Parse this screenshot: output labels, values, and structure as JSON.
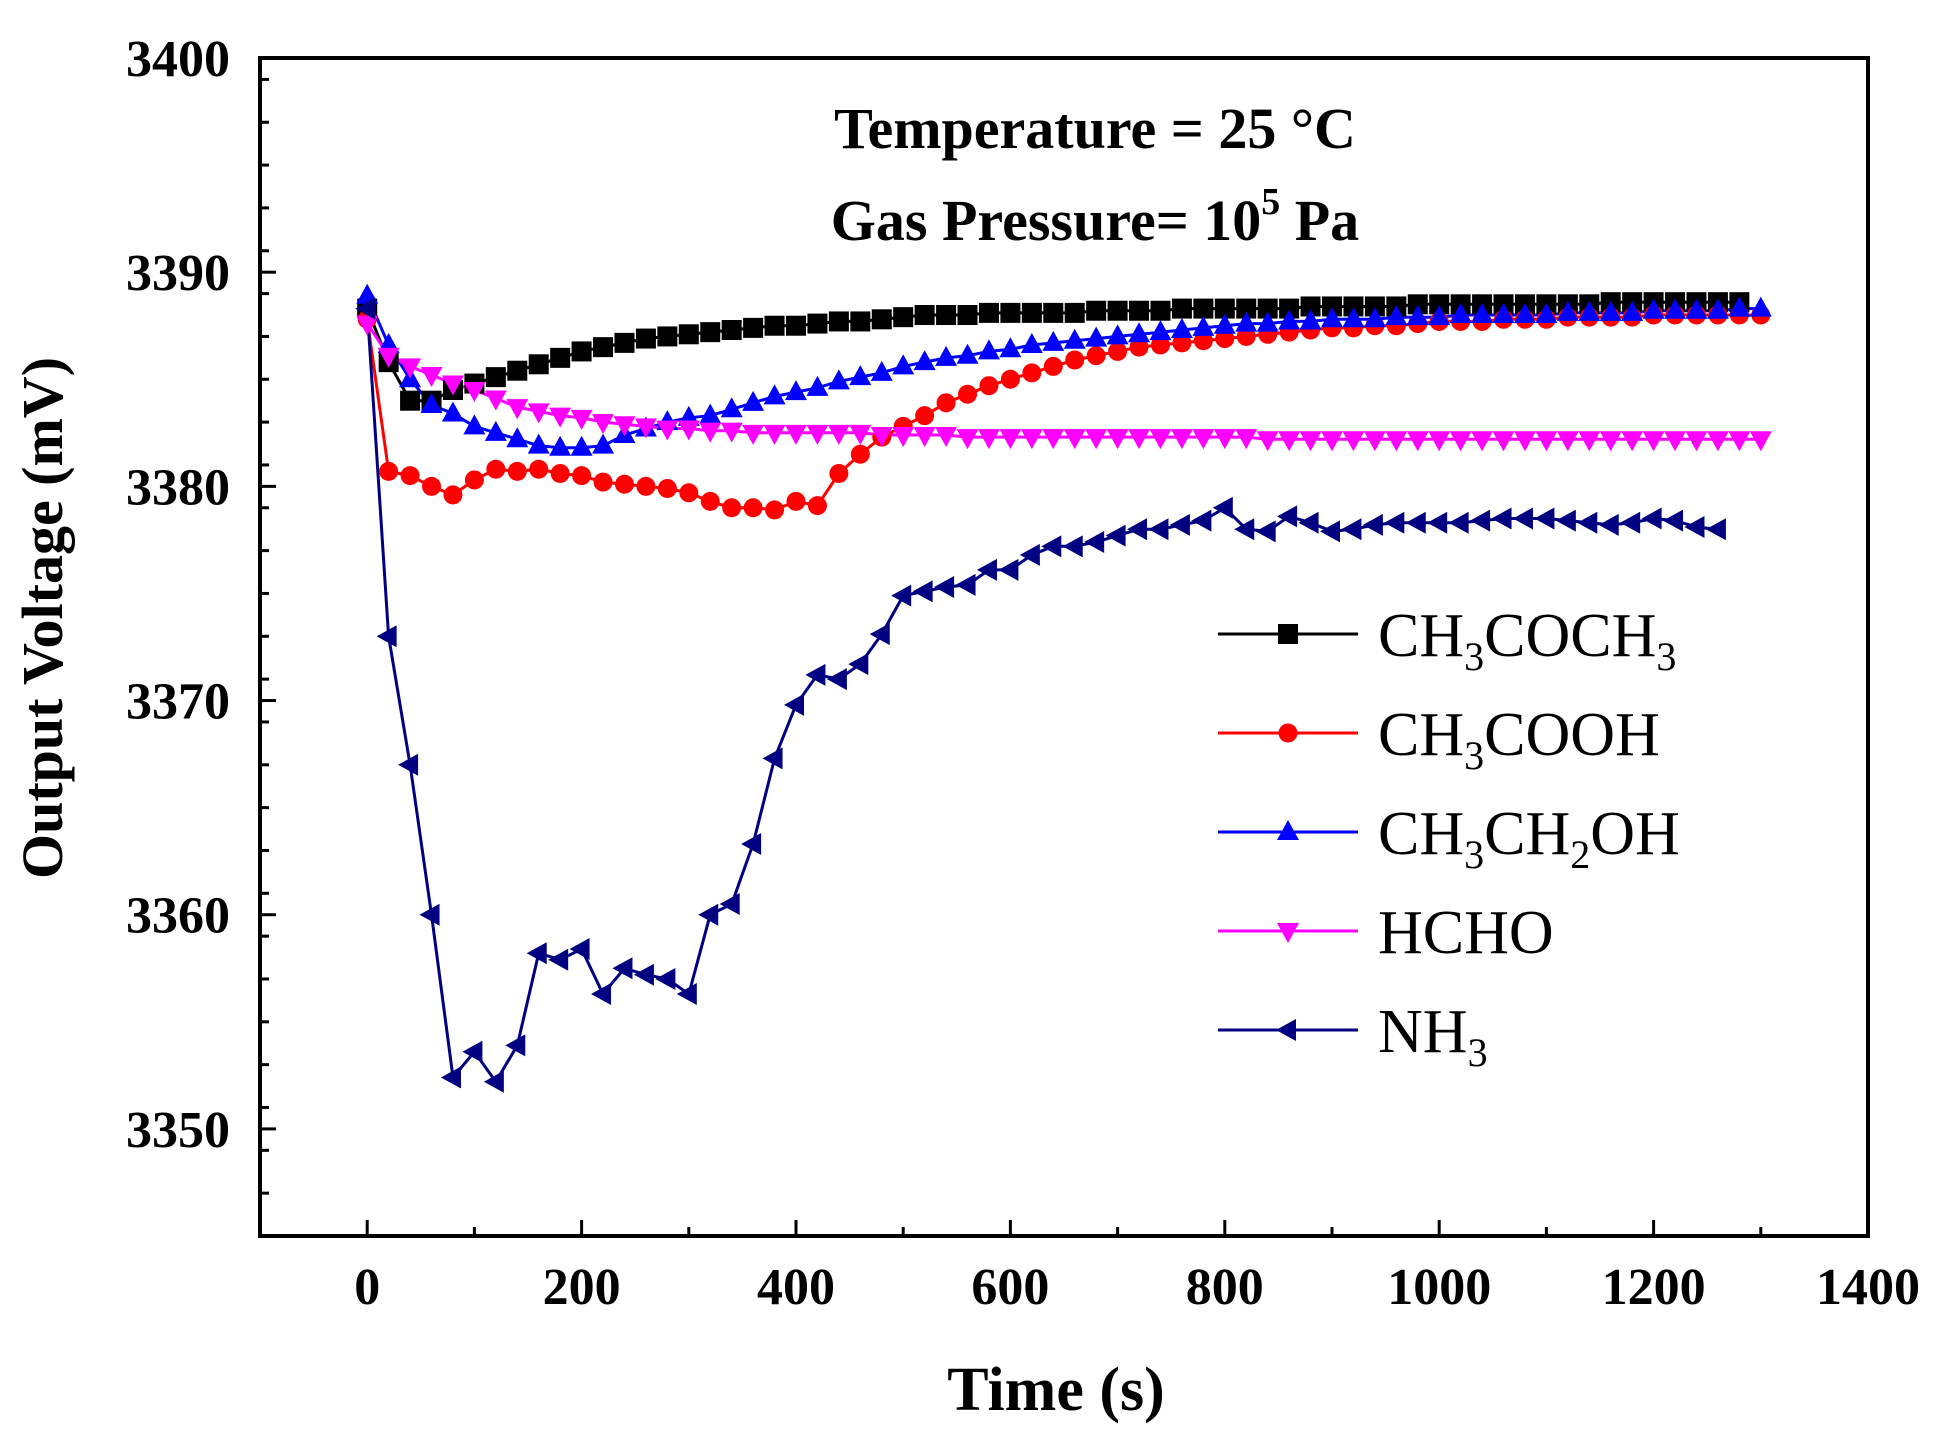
{
  "chart_data": {
    "type": "line",
    "xlabel": "Time (s)",
    "ylabel": "Output Voltage (mV)",
    "xlim": [
      -100,
      1400
    ],
    "ylim": [
      3345,
      3400
    ],
    "x_ticks": [
      0,
      200,
      400,
      600,
      800,
      1000,
      1200,
      1400
    ],
    "y_ticks": [
      3350,
      3360,
      3370,
      3380,
      3390,
      3400
    ],
    "x_tick_labels": [
      "0",
      "200",
      "400",
      "600",
      "800",
      "1000",
      "1200",
      "1400"
    ],
    "y_tick_labels": [
      "3350",
      "3360",
      "3370",
      "3380",
      "3390",
      "3400"
    ],
    "annotations": {
      "temperature": "Temperature = 25 °C",
      "pressure_prefix": "Gas Pressure= 10",
      "pressure_exp": "5",
      "pressure_suffix": " Pa"
    },
    "legend_position": "center-right",
    "series": [
      {
        "name": "CH3COCH3",
        "legend_parts": [
          [
            "CH",
            false
          ],
          [
            "3",
            true
          ],
          [
            "COCH",
            false
          ],
          [
            "3",
            true
          ]
        ],
        "color": "#000000",
        "marker": "square",
        "x": [
          0,
          20,
          40,
          60,
          80,
          100,
          120,
          140,
          160,
          180,
          200,
          220,
          240,
          260,
          280,
          300,
          320,
          340,
          360,
          380,
          400,
          420,
          440,
          460,
          480,
          500,
          520,
          540,
          560,
          580,
          600,
          620,
          640,
          660,
          680,
          700,
          720,
          740,
          760,
          780,
          800,
          820,
          840,
          860,
          880,
          900,
          920,
          940,
          960,
          980,
          1000,
          1020,
          1040,
          1060,
          1080,
          1100,
          1120,
          1140,
          1160,
          1180,
          1200,
          1220,
          1240,
          1260,
          1280
        ],
        "y": [
          3388.3,
          3385.8,
          3384.0,
          3384.0,
          3384.5,
          3384.8,
          3385.1,
          3385.4,
          3385.7,
          3386.0,
          3386.3,
          3386.5,
          3386.7,
          3386.9,
          3387.0,
          3387.1,
          3387.2,
          3387.3,
          3387.4,
          3387.5,
          3387.5,
          3387.6,
          3387.7,
          3387.7,
          3387.8,
          3387.9,
          3388.0,
          3388.0,
          3388.0,
          3388.1,
          3388.1,
          3388.1,
          3388.1,
          3388.1,
          3388.2,
          3388.2,
          3388.2,
          3388.2,
          3388.3,
          3388.3,
          3388.3,
          3388.3,
          3388.3,
          3388.3,
          3388.4,
          3388.4,
          3388.4,
          3388.4,
          3388.4,
          3388.5,
          3388.5,
          3388.5,
          3388.5,
          3388.5,
          3388.5,
          3388.5,
          3388.5,
          3388.5,
          3388.6,
          3388.6,
          3388.6,
          3388.6,
          3388.6,
          3388.6,
          3388.6
        ]
      },
      {
        "name": "CH3COOH",
        "legend_parts": [
          [
            "CH",
            false
          ],
          [
            "3",
            true
          ],
          [
            "COOH",
            false
          ]
        ],
        "color": "#ff0000",
        "marker": "circle",
        "x": [
          0,
          20,
          40,
          60,
          80,
          100,
          120,
          140,
          160,
          180,
          200,
          220,
          240,
          260,
          280,
          300,
          320,
          340,
          360,
          380,
          400,
          420,
          440,
          460,
          480,
          500,
          520,
          540,
          560,
          580,
          600,
          620,
          640,
          660,
          680,
          700,
          720,
          740,
          760,
          780,
          800,
          820,
          840,
          860,
          880,
          900,
          920,
          940,
          960,
          980,
          1000,
          1020,
          1040,
          1060,
          1080,
          1100,
          1120,
          1140,
          1160,
          1180,
          1200,
          1220,
          1240,
          1260,
          1280,
          1300
        ],
        "y": [
          3387.8,
          3380.7,
          3380.5,
          3380.0,
          3379.6,
          3380.3,
          3380.8,
          3380.7,
          3380.8,
          3380.6,
          3380.5,
          3380.2,
          3380.1,
          3380.0,
          3379.9,
          3379.7,
          3379.3,
          3379.0,
          3379.0,
          3378.9,
          3379.3,
          3379.1,
          3380.6,
          3381.5,
          3382.3,
          3382.8,
          3383.3,
          3383.9,
          3384.3,
          3384.7,
          3385.0,
          3385.3,
          3385.6,
          3385.9,
          3386.1,
          3386.3,
          3386.5,
          3386.6,
          3386.7,
          3386.8,
          3386.9,
          3387.0,
          3387.1,
          3387.2,
          3387.3,
          3387.4,
          3387.4,
          3387.5,
          3387.5,
          3387.6,
          3387.7,
          3387.7,
          3387.7,
          3387.8,
          3387.8,
          3387.8,
          3387.9,
          3387.9,
          3387.9,
          3387.9,
          3388.0,
          3388.0,
          3388.0,
          3388.0,
          3388.0,
          3388.0
        ]
      },
      {
        "name": "CH3CH2OH",
        "legend_parts": [
          [
            "CH",
            false
          ],
          [
            "3",
            true
          ],
          [
            "CH",
            false
          ],
          [
            "2",
            true
          ],
          [
            "OH",
            false
          ]
        ],
        "color": "#0000ff",
        "marker": "triangle-up",
        "x": [
          0,
          20,
          40,
          60,
          80,
          100,
          120,
          140,
          160,
          180,
          200,
          220,
          240,
          260,
          280,
          300,
          320,
          340,
          360,
          380,
          400,
          420,
          440,
          460,
          480,
          500,
          520,
          540,
          560,
          580,
          600,
          620,
          640,
          660,
          680,
          700,
          720,
          740,
          760,
          780,
          800,
          820,
          840,
          860,
          880,
          900,
          920,
          940,
          960,
          980,
          1000,
          1020,
          1040,
          1060,
          1080,
          1100,
          1120,
          1140,
          1160,
          1180,
          1200,
          1220,
          1240,
          1260,
          1280,
          1300
        ],
        "y": [
          3388.9,
          3386.6,
          3385.0,
          3383.8,
          3383.4,
          3382.8,
          3382.5,
          3382.2,
          3381.9,
          3381.8,
          3381.8,
          3381.9,
          3382.4,
          3382.7,
          3383.0,
          3383.2,
          3383.3,
          3383.6,
          3383.9,
          3384.2,
          3384.4,
          3384.6,
          3384.9,
          3385.1,
          3385.3,
          3385.6,
          3385.8,
          3386.0,
          3386.1,
          3386.3,
          3386.4,
          3386.6,
          3386.7,
          3386.8,
          3386.9,
          3387.0,
          3387.1,
          3387.2,
          3387.3,
          3387.4,
          3387.5,
          3387.6,
          3387.6,
          3387.7,
          3387.7,
          3387.8,
          3387.8,
          3387.8,
          3387.9,
          3387.9,
          3387.9,
          3388.0,
          3388.0,
          3388.0,
          3388.0,
          3388.0,
          3388.1,
          3388.1,
          3388.1,
          3388.1,
          3388.2,
          3388.2,
          3388.2,
          3388.2,
          3388.3,
          3388.3
        ]
      },
      {
        "name": "HCHO",
        "legend_parts": [
          [
            "HCHO",
            false
          ]
        ],
        "color": "#ff00ff",
        "marker": "triangle-down",
        "x": [
          0,
          20,
          40,
          60,
          80,
          100,
          120,
          140,
          160,
          180,
          200,
          220,
          240,
          260,
          280,
          300,
          320,
          340,
          360,
          380,
          400,
          420,
          440,
          460,
          480,
          500,
          520,
          540,
          560,
          580,
          600,
          620,
          640,
          660,
          680,
          700,
          720,
          740,
          760,
          780,
          800,
          820,
          840,
          860,
          880,
          900,
          920,
          940,
          960,
          980,
          1000,
          1020,
          1040,
          1060,
          1080,
          1100,
          1120,
          1140,
          1160,
          1180,
          1200,
          1220,
          1240,
          1260,
          1280,
          1300
        ],
        "y": [
          3387.6,
          3386.1,
          3385.6,
          3385.2,
          3384.8,
          3384.5,
          3384.1,
          3383.7,
          3383.5,
          3383.3,
          3383.2,
          3383.0,
          3382.9,
          3382.8,
          3382.7,
          3382.7,
          3382.6,
          3382.6,
          3382.5,
          3382.5,
          3382.5,
          3382.5,
          3382.5,
          3382.5,
          3382.4,
          3382.4,
          3382.4,
          3382.4,
          3382.3,
          3382.3,
          3382.3,
          3382.3,
          3382.3,
          3382.3,
          3382.3,
          3382.3,
          3382.3,
          3382.3,
          3382.3,
          3382.3,
          3382.3,
          3382.3,
          3382.2,
          3382.2,
          3382.2,
          3382.2,
          3382.2,
          3382.2,
          3382.2,
          3382.2,
          3382.2,
          3382.2,
          3382.2,
          3382.2,
          3382.2,
          3382.2,
          3382.2,
          3382.2,
          3382.2,
          3382.2,
          3382.2,
          3382.2,
          3382.2,
          3382.2,
          3382.2,
          3382.2
        ]
      },
      {
        "name": "NH3",
        "legend_parts": [
          [
            "NH",
            false
          ],
          [
            "3",
            true
          ]
        ],
        "color": "#000080",
        "marker": "triangle-left",
        "x": [
          0,
          20,
          40,
          60,
          80,
          100,
          120,
          140,
          160,
          180,
          200,
          220,
          240,
          260,
          280,
          300,
          320,
          340,
          360,
          380,
          400,
          420,
          440,
          460,
          480,
          500,
          520,
          540,
          560,
          580,
          600,
          620,
          640,
          660,
          680,
          700,
          720,
          740,
          760,
          780,
          800,
          820,
          840,
          860,
          880,
          900,
          920,
          940,
          960,
          980,
          1000,
          1020,
          1040,
          1060,
          1080,
          1100,
          1120,
          1140,
          1160,
          1180,
          1200,
          1220,
          1240,
          1260
        ],
        "y": [
          3388.3,
          3373.0,
          3367.0,
          3360.0,
          3352.4,
          3353.6,
          3352.2,
          3353.9,
          3358.2,
          3357.9,
          3358.4,
          3356.3,
          3357.5,
          3357.2,
          3357.0,
          3356.3,
          3360.0,
          3360.5,
          3363.3,
          3367.3,
          3369.8,
          3371.2,
          3371.0,
          3371.7,
          3373.1,
          3374.9,
          3375.1,
          3375.3,
          3375.4,
          3376.1,
          3376.1,
          3376.8,
          3377.2,
          3377.2,
          3377.4,
          3377.7,
          3378.0,
          3378.0,
          3378.2,
          3378.4,
          3379.0,
          3378.0,
          3377.9,
          3378.6,
          3378.3,
          3377.9,
          3378.0,
          3378.2,
          3378.3,
          3378.3,
          3378.3,
          3378.3,
          3378.4,
          3378.5,
          3378.5,
          3378.5,
          3378.4,
          3378.3,
          3378.2,
          3378.3,
          3378.5,
          3378.4,
          3378.1,
          3378.0
        ]
      }
    ]
  }
}
